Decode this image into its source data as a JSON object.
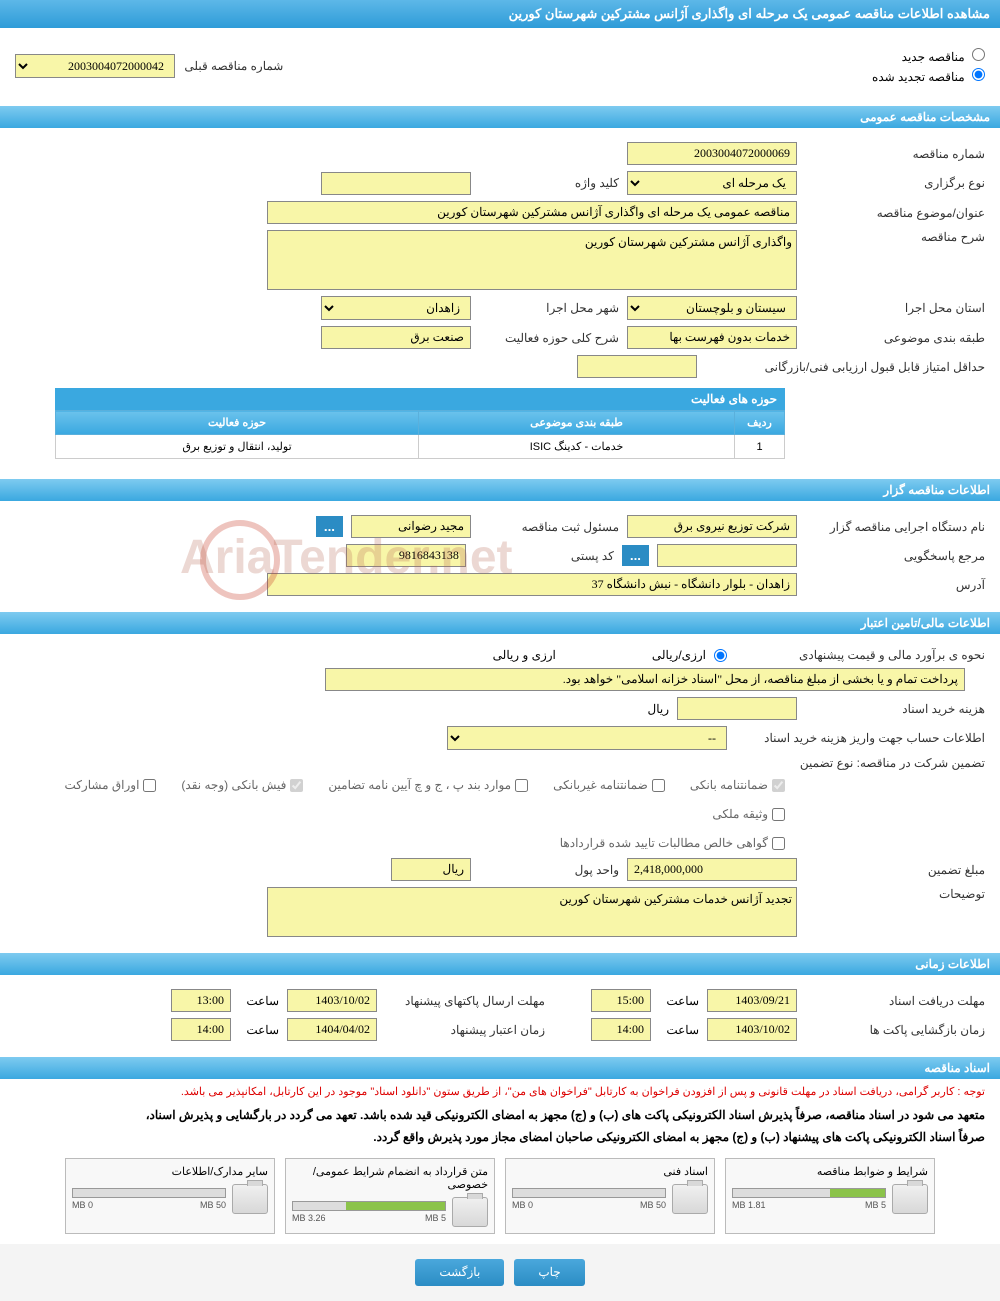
{
  "header": {
    "title": "مشاهده اطلاعات مناقصه عمومی یک مرحله ای واگذاری آژانس مشترکین شهرستان کورین"
  },
  "radios": {
    "new_tender": "مناقصه جدید",
    "renewed_tender": "مناقصه تجدید شده"
  },
  "prev_tender": {
    "label": "شماره مناقصه قبلی",
    "value": "2003004072000042"
  },
  "sections": {
    "general": "مشخصات مناقصه عمومی",
    "organizer": "اطلاعات مناقصه گزار",
    "financial": "اطلاعات مالی/تامین اعتبار",
    "timing": "اطلاعات زمانی",
    "documents": "اسناد مناقصه"
  },
  "general": {
    "tender_no_label": "شماره مناقصه",
    "tender_no": "2003004072000069",
    "type_label": "نوع برگزاری",
    "type_value": "یک مرحله ای",
    "keyword_label": "کلید واژه",
    "keyword_value": "",
    "title_label": "عنوان/موضوع مناقصه",
    "title_value": "مناقصه عمومی یک مرحله ای واگذاری آژانس مشترکین شهرستان کورین",
    "desc_label": "شرح مناقصه",
    "desc_value": "واگذاری آژانس مشترکین شهرستان کورین",
    "province_label": "استان محل اجرا",
    "province_value": "سیستان و بلوچستان",
    "city_label": "شهر محل اجرا",
    "city_value": "زاهدان",
    "category_label": "طبقه بندی موضوعی",
    "category_value": "خدمات بدون فهرست بها",
    "activity_label": "شرح کلی حوزه فعالیت",
    "activity_value": "صنعت برق",
    "min_score_label": "حداقل امتیاز قابل قبول ارزیابی فنی/بازرگانی",
    "min_score_value": ""
  },
  "activity_table": {
    "title": "حوزه های فعالیت",
    "cols": {
      "row": "ردیف",
      "category": "طبقه بندی موضوعی",
      "activity": "حوزه فعالیت"
    },
    "rows": [
      {
        "idx": "1",
        "cat": "خدمات - کدینگ ISIC",
        "act": "تولید، انتقال و توزیع برق"
      }
    ]
  },
  "organizer": {
    "name_label": "نام دستگاه اجرایی مناقصه گزار",
    "name_value": "شرکت توزیع نیروی برق",
    "registrar_label": "مسئول ثبت مناقصه",
    "registrar_value": "مجید رضوانی",
    "ref_label": "مرجع پاسخگویی",
    "ref_value": "",
    "postal_label": "کد پستی",
    "postal_value": "9816843138",
    "address_label": "آدرس",
    "address_value": "زاهدان - بلوار دانشگاه - نبش دانشگاه 37"
  },
  "financial": {
    "estimate_label": "نحوه ی برآورد مالی و قیمت پیشنهادی",
    "currency_opt1": "ارزی/ریالی",
    "currency_opt2": "ارزی و ریالی",
    "payment_note": "پرداخت تمام و یا بخشی از مبلغ مناقصه، از محل \"اسناد خزانه اسلامی\" خواهد بود.",
    "cost_label": "هزینه خرید اسناد",
    "cost_unit": "ریال",
    "account_label": "اطلاعات حساب جهت واریز هزینه خرید اسناد",
    "account_value": "--",
    "guarantee_label": "تضمین شرکت در مناقصه:   نوع تضمین",
    "cb1": "ضمانتنامه بانکی",
    "cb2": "ضمانتنامه غیربانکی",
    "cb3": "موارد بند پ ، ج و چ آیین نامه تضامین",
    "cb4": "فیش بانکی (وجه نقد)",
    "cb5": "اوراق مشارکت",
    "cb6": "وثیقه ملکی",
    "cb7": "گواهی خالص مطالبات تایید شده قراردادها",
    "amount_label": "مبلغ تضمین",
    "amount_value": "2,418,000,000",
    "amount_unit_label": "واحد پول",
    "amount_unit": "ریال",
    "notes_label": "توضیحات",
    "notes_value": "تجدید آژانس خدمات مشترکین شهرستان کورین"
  },
  "timing": {
    "doc_deadline_label": "مهلت دریافت اسناد",
    "doc_deadline_date": "1403/09/21",
    "hour_label": "ساعت",
    "doc_deadline_time": "15:00",
    "proposal_label": "مهلت ارسال پاکتهای پیشنهاد",
    "proposal_date": "1403/10/02",
    "proposal_time": "13:00",
    "opening_label": "زمان بازگشایی پاکت ها",
    "opening_date": "1403/10/02",
    "opening_time": "14:00",
    "validity_label": "زمان اعتبار پیشنهاد",
    "validity_date": "1404/04/02",
    "validity_time": "14:00"
  },
  "documents": {
    "warning": "توجه : کاربر گرامی، دریافت اسناد در مهلت قانونی و پس از افزودن فراخوان به کارتابل \"فراخوان های من\"، از طریق ستون \"دانلود اسناد\" موجود در این کارتابل، امکانپذیر می باشد.",
    "note1": "متعهد می شود در اسناد مناقصه، صرفاً پذیرش اسناد الکترونیکی پاکت های (ب) و (ج) مجهز به امضای الکترونیکی قید شده باشد. تعهد می گردد در بارگشایی و پذیرش اسناد،",
    "note2": "صرفاً اسناد الکترونیکی پاکت های پیشنهاد (ب) و (ج) مجهز به امضای الکترونیکی صاحبان امضای مجاز مورد پذیرش واقع گردد.",
    "files": [
      {
        "title": "شرایط و ضوابط مناقصه",
        "used": "1.81 MB",
        "total": "5 MB",
        "pct": 36
      },
      {
        "title": "اسناد فنی",
        "used": "0 MB",
        "total": "50 MB",
        "pct": 0
      },
      {
        "title": "متن قرارداد به انضمام شرایط عمومی/خصوصی",
        "used": "3.26 MB",
        "total": "5 MB",
        "pct": 65
      },
      {
        "title": "سایر مدارک/اطلاعات",
        "used": "0 MB",
        "total": "50 MB",
        "pct": 0
      }
    ]
  },
  "buttons": {
    "print": "چاپ",
    "back": "بازگشت",
    "dots": "..."
  },
  "watermark": "AriaTender.net"
}
